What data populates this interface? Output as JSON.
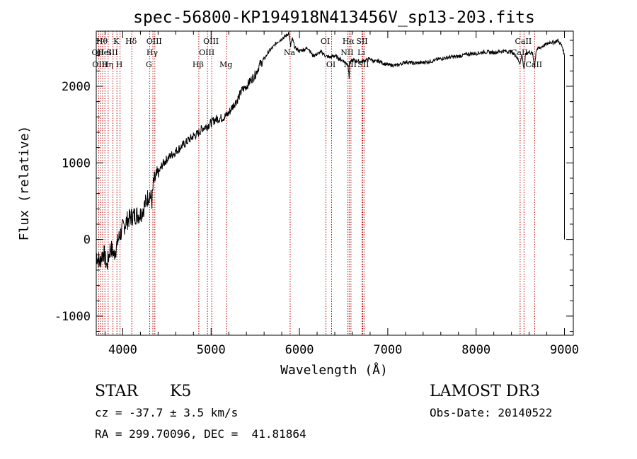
{
  "chart_data": {
    "type": "line",
    "title": "spec-56800-KP194918N413456V_sp13-203.fits",
    "xlabel": "Wavelength (Å)",
    "ylabel": "Flux (relative)",
    "xlim": [
      3700,
      9100
    ],
    "ylim": [
      -1250,
      2720
    ],
    "xticks": [
      4000,
      5000,
      6000,
      7000,
      8000,
      9000
    ],
    "yticks": [
      -1000,
      0,
      1000,
      2000
    ],
    "series": [
      {
        "name": "spectrum",
        "x": [
          3700,
          3740,
          3780,
          3820,
          3860,
          3900,
          3950,
          4000,
          4050,
          4100,
          4150,
          4200,
          4250,
          4300,
          4330,
          4350,
          4400,
          4450,
          4500,
          4550,
          4600,
          4650,
          4700,
          4750,
          4800,
          4850,
          4900,
          4950,
          5000,
          5050,
          5100,
          5150,
          5200,
          5250,
          5300,
          5350,
          5400,
          5450,
          5500,
          5550,
          5600,
          5650,
          5700,
          5750,
          5800,
          5850,
          5880,
          5895,
          5900,
          5905,
          5920,
          5950,
          6000,
          6050,
          6100,
          6150,
          6200,
          6250,
          6300,
          6350,
          6400,
          6450,
          6500,
          6550,
          6563,
          6570,
          6600,
          6650,
          6700,
          6750,
          6800,
          6850,
          6900,
          6950,
          7000,
          7100,
          7200,
          7300,
          7400,
          7500,
          7600,
          7700,
          7800,
          7900,
          8000,
          8100,
          8200,
          8300,
          8400,
          8450,
          8498,
          8520,
          8542,
          8560,
          8600,
          8640,
          8662,
          8680,
          8720,
          8760,
          8800,
          8840,
          8880,
          8920,
          8960,
          8980,
          8995,
          9000
        ],
        "y": [
          -200,
          -300,
          -150,
          -350,
          -100,
          -200,
          0,
          150,
          250,
          300,
          320,
          330,
          450,
          600,
          500,
          750,
          850,
          980,
          1050,
          1100,
          1150,
          1200,
          1250,
          1300,
          1350,
          1380,
          1450,
          1480,
          1520,
          1570,
          1580,
          1600,
          1650,
          1750,
          1830,
          1950,
          2000,
          2080,
          2150,
          2280,
          2350,
          2450,
          2510,
          2580,
          2620,
          2660,
          2700,
          2560,
          2520,
          2560,
          2620,
          2500,
          2460,
          2480,
          2500,
          2400,
          2420,
          2450,
          2390,
          2380,
          2400,
          2360,
          2330,
          2280,
          2100,
          2300,
          2340,
          2330,
          2320,
          2340,
          2360,
          2320,
          2330,
          2300,
          2280,
          2270,
          2320,
          2300,
          2310,
          2330,
          2360,
          2380,
          2390,
          2420,
          2430,
          2450,
          2440,
          2460,
          2450,
          2400,
          2300,
          2420,
          2200,
          2430,
          2450,
          2420,
          2250,
          2480,
          2500,
          2530,
          2550,
          2580,
          2570,
          2600,
          2550,
          2500,
          2420,
          2400
        ]
      }
    ],
    "lines": [
      {
        "wave": 3727,
        "label": "OII",
        "row": 1
      },
      {
        "wave": 3750,
        "label": "OIII",
        "row": 2
      },
      {
        "wave": 3772,
        "label": "Hθ",
        "row": 0
      },
      {
        "wave": 3798,
        "label": "HeI",
        "row": 1
      },
      {
        "wave": 3835,
        "label": "Hη",
        "row": 2
      },
      {
        "wave": 3889,
        "label": "SII",
        "row": 1
      },
      {
        "wave": 3934,
        "label": "K",
        "row": 0
      },
      {
        "wave": 3969,
        "label": "H",
        "row": 2
      },
      {
        "wave": 4102,
        "label": "Hδ",
        "row": 0
      },
      {
        "wave": 4304,
        "label": "G",
        "row": 2
      },
      {
        "wave": 4341,
        "label": "Hγ",
        "row": 1
      },
      {
        "wave": 4363,
        "label": "OIII",
        "row": 0
      },
      {
        "wave": 4861,
        "label": "Hβ",
        "row": 2
      },
      {
        "wave": 4959,
        "label": "OIII",
        "row": 1
      },
      {
        "wave": 5007,
        "label": "OIII",
        "row": 0
      },
      {
        "wave": 5175,
        "label": "Mg",
        "row": 2
      },
      {
        "wave": 5895,
        "label": "Na",
        "row": 1
      },
      {
        "wave": 6300,
        "label": "OI",
        "row": 0
      },
      {
        "wave": 6364,
        "label": "OI",
        "row": 2
      },
      {
        "wave": 6548,
        "label": "NII",
        "row": 1
      },
      {
        "wave": 6563,
        "label": "Hα",
        "row": 0
      },
      {
        "wave": 6583,
        "label": "NII",
        "row": 2
      },
      {
        "wave": 6716,
        "label": "SII",
        "row": 0
      },
      {
        "wave": 6731,
        "label": "SII",
        "row": 2
      },
      {
        "wave": 6708,
        "label": "Li",
        "row": 1
      },
      {
        "wave": 8498,
        "label": "CaII",
        "row": 1
      },
      {
        "wave": 8542,
        "label": "CaII",
        "row": 0
      },
      {
        "wave": 8662,
        "label": "CaII",
        "row": 2
      }
    ]
  },
  "info": {
    "class_label": "STAR",
    "subclass": "K5",
    "survey": "LAMOST DR3",
    "cz": "cz = -37.7 ± 3.5 km/s",
    "obs_date": "Obs-Date: 20140522",
    "coords": "RA = 299.70096, DEC =  41.81864"
  }
}
